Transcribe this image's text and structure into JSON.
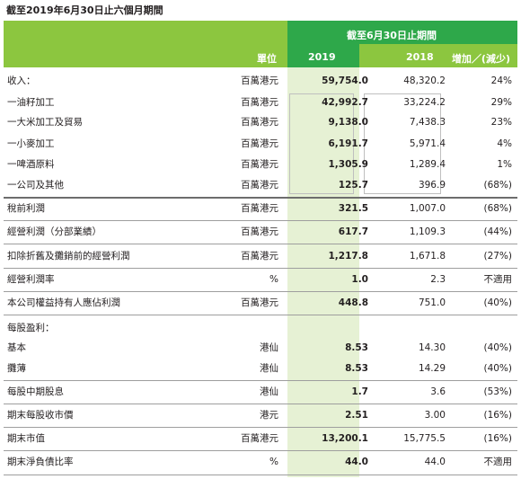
{
  "title": "截至2019年6月30日止六個月期間",
  "header": {
    "period": "截至6月30日止期間",
    "unit": "單位",
    "y2019": "2019",
    "y2018": "2018",
    "change": "增加／(減少)"
  },
  "rows": [
    {
      "label": "收入：",
      "unit": "百萬港元",
      "v2019": "59,754.0",
      "v2018": "48,320.2",
      "change": "24%"
    },
    {
      "label": "一油籽加工",
      "unit": "百萬港元",
      "v2019": "42,992.7",
      "v2018": "33,224.2",
      "change": "29%"
    },
    {
      "label": "一大米加工及貿易",
      "unit": "百萬港元",
      "v2019": "9,138.0",
      "v2018": "7,438.3",
      "change": "23%"
    },
    {
      "label": "一小麥加工",
      "unit": "百萬港元",
      "v2019": "6,191.7",
      "v2018": "5,971.4",
      "change": "4%"
    },
    {
      "label": "一啤酒原料",
      "unit": "百萬港元",
      "v2019": "1,305.9",
      "v2018": "1,289.4",
      "change": "1%"
    },
    {
      "label": "一公司及其他",
      "unit": "百萬港元",
      "v2019": "125.7",
      "v2018": "396.9",
      "change": "(68%)"
    },
    {
      "label": "稅前利潤",
      "unit": "百萬港元",
      "v2019": "321.5",
      "v2018": "1,007.0",
      "change": "(68%)"
    },
    {
      "label": "經營利潤（分部業績）",
      "unit": "百萬港元",
      "v2019": "617.7",
      "v2018": "1,109.3",
      "change": "(44%)"
    },
    {
      "label": "扣除折舊及攤銷前的經營利潤",
      "unit": "百萬港元",
      "v2019": "1,217.8",
      "v2018": "1,671.8",
      "change": "(27%)"
    },
    {
      "label": "經營利潤率",
      "unit": "%",
      "v2019": "1.0",
      "v2018": "2.3",
      "change": "不適用"
    },
    {
      "label": "本公司權益持有人應佔利潤",
      "unit": "百萬港元",
      "v2019": "448.8",
      "v2018": "751.0",
      "change": "(40%)"
    },
    {
      "label": "每股盈利：",
      "unit": "",
      "v2019": "",
      "v2018": "",
      "change": ""
    },
    {
      "label": "基本",
      "unit": "港仙",
      "v2019": "8.53",
      "v2018": "14.30",
      "change": "(40%)"
    },
    {
      "label": "攤薄",
      "unit": "港仙",
      "v2019": "8.53",
      "v2018": "14.29",
      "change": "(40%)"
    },
    {
      "label": "每股中期股息",
      "unit": "港仙",
      "v2019": "1.7",
      "v2018": "3.6",
      "change": "(53%)"
    },
    {
      "label": "期末每股收市價",
      "unit": "港元",
      "v2019": "2.51",
      "v2018": "3.00",
      "change": "(16%)"
    },
    {
      "label": "期末市值",
      "unit": "百萬港元",
      "v2019": "13,200.1",
      "v2018": "15,775.5",
      "change": "(16%)"
    },
    {
      "label": "期末淨負債比率",
      "unit": "%",
      "v2019": "44.0",
      "v2018": "44.0",
      "change": "不適用"
    }
  ],
  "colors": {
    "header_light_green": "#8cc63f",
    "header_dark_green": "#2ea84a",
    "column_2019_bg": "#e6f1d4"
  }
}
